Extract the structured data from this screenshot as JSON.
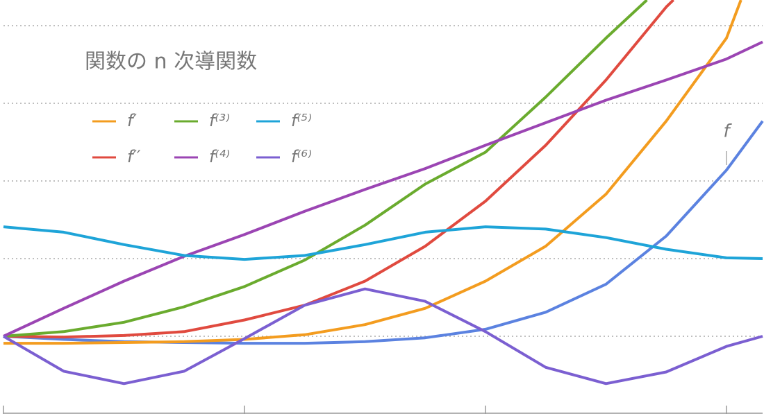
{
  "chart_data": {
    "type": "line",
    "title": "関数の n 次導関数",
    "xlim": [
      0,
      3.15
    ],
    "ylim": [
      -1,
      4.33
    ],
    "xticks": [
      0,
      1,
      2,
      3
    ],
    "yticks": [
      0,
      1,
      2,
      3,
      4
    ],
    "grid": true,
    "series": [
      {
        "name": "f",
        "color": "#5b82e0",
        "x": [
          0,
          0.25,
          0.5,
          0.75,
          1,
          1.25,
          1.5,
          1.75,
          2,
          2.25,
          2.5,
          2.75,
          3,
          3.15
        ],
        "values": [
          0,
          -0.04,
          -0.07,
          -0.08,
          -0.09,
          -0.09,
          -0.07,
          -0.02,
          0.09,
          0.31,
          0.67,
          1.29,
          2.14,
          2.77
        ]
      },
      {
        "name": "f′",
        "color": "#f39c1f",
        "x": [
          0,
          0.25,
          0.5,
          0.75,
          1,
          1.25,
          1.5,
          1.75,
          2,
          2.25,
          2.5,
          2.75,
          3,
          3.06
        ],
        "values": [
          -0.09,
          -0.09,
          -0.08,
          -0.07,
          -0.04,
          0.02,
          0.15,
          0.36,
          0.71,
          1.16,
          1.83,
          2.77,
          3.84,
          4.33
        ]
      },
      {
        "name": "f′′",
        "color": "#e04a3f",
        "x": [
          0,
          0.25,
          0.5,
          0.75,
          1,
          1.25,
          1.5,
          1.75,
          2,
          2.25,
          2.5,
          2.75,
          2.78
        ],
        "values": [
          0,
          -0.01,
          0.01,
          0.06,
          0.21,
          0.4,
          0.71,
          1.16,
          1.74,
          2.46,
          3.3,
          4.24,
          4.33
        ]
      },
      {
        "name": "f⁽³⁾",
        "color": "#6aab2e",
        "x": [
          0,
          0.25,
          0.5,
          0.75,
          1,
          1.25,
          1.5,
          1.75,
          2,
          2.25,
          2.5,
          2.67
        ],
        "values": [
          0,
          0.06,
          0.18,
          0.38,
          0.64,
          0.98,
          1.43,
          1.96,
          2.37,
          3.08,
          3.84,
          4.33
        ]
      },
      {
        "name": "f⁽⁴⁾",
        "color": "#9b45b3",
        "x": [
          0,
          0.25,
          0.5,
          0.75,
          1,
          1.25,
          1.5,
          1.75,
          2,
          2.25,
          2.5,
          2.75,
          3,
          3.15
        ],
        "values": [
          0,
          0.36,
          0.71,
          1.03,
          1.31,
          1.61,
          1.89,
          2.16,
          2.46,
          2.75,
          3.04,
          3.3,
          3.57,
          3.79
        ]
      },
      {
        "name": "f⁽⁵⁾",
        "color": "#1ea4d8",
        "x": [
          0,
          0.25,
          0.5,
          0.75,
          1,
          1.25,
          1.5,
          1.75,
          2,
          2.25,
          2.5,
          2.75,
          3,
          3.15
        ],
        "values": [
          1.41,
          1.34,
          1.18,
          1.04,
          0.99,
          1.04,
          1.18,
          1.34,
          1.41,
          1.38,
          1.27,
          1.12,
          1.01,
          1.0
        ]
      },
      {
        "name": "f⁽⁶⁾",
        "color": "#7b5fd1",
        "x": [
          0,
          0.25,
          0.5,
          0.75,
          1,
          1.25,
          1.5,
          1.75,
          2,
          2.25,
          2.5,
          2.75,
          3,
          3.15
        ],
        "values": [
          0,
          -0.45,
          -0.61,
          -0.45,
          -0.03,
          0.4,
          0.61,
          0.45,
          0.06,
          -0.4,
          -0.61,
          -0.46,
          -0.13,
          0
        ]
      }
    ]
  }
}
